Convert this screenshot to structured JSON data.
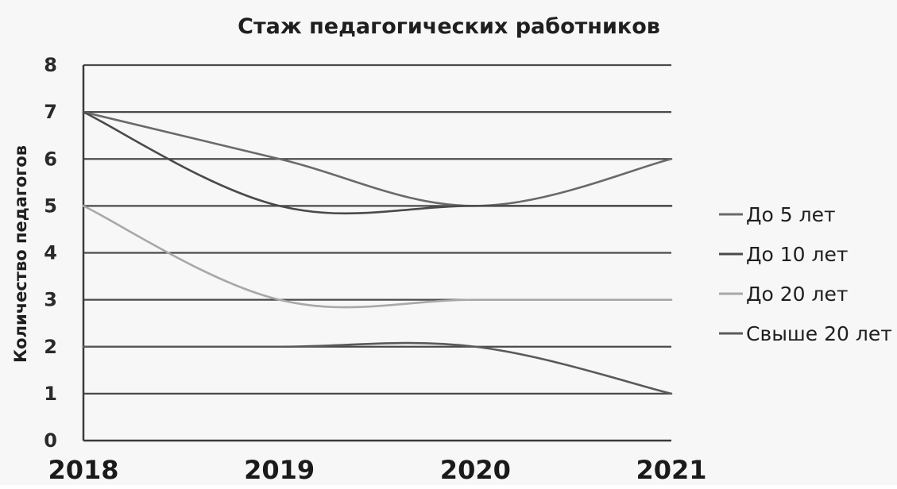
{
  "chart_data": {
    "type": "line",
    "title": "Стаж педагогических работников",
    "xlabel": "",
    "ylabel": "Количество педагогов",
    "categories": [
      "2018",
      "2019",
      "2020",
      "2021"
    ],
    "ylim": [
      0,
      8
    ],
    "yticks": [
      "0",
      "1",
      "2",
      "3",
      "4",
      "5",
      "6",
      "7",
      "8"
    ],
    "grid": true,
    "smooth": true,
    "legend_position": "right",
    "series": [
      {
        "name": "До 5 лет",
        "values": [
          7,
          6,
          5,
          6
        ],
        "color": "#6a6a6a"
      },
      {
        "name": "До 10 лет",
        "values": [
          7,
          5,
          5,
          5
        ],
        "color": "#4a4a4a"
      },
      {
        "name": "До 20 лет",
        "values": [
          5,
          3,
          3,
          3
        ],
        "color": "#a8a8a8"
      },
      {
        "name": "Свыше 20 лет",
        "values": [
          2,
          2,
          2,
          1
        ],
        "color": "#5a5a5a"
      }
    ]
  }
}
